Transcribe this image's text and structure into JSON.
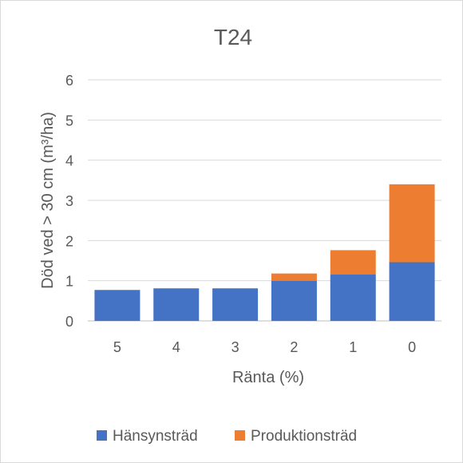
{
  "chart_data": {
    "type": "bar",
    "stacked": true,
    "title": "T24",
    "xlabel": "Ränta (%)",
    "ylabel": "Död ved > 30 cm (m³/ha)",
    "categories": [
      "5",
      "4",
      "3",
      "2",
      "1",
      "0"
    ],
    "series": [
      {
        "name": "Hänsynsträd",
        "color": "#4472c4",
        "values": [
          0.77,
          0.81,
          0.81,
          1.0,
          1.16,
          1.46
        ]
      },
      {
        "name": "Produktionsträd",
        "color": "#ed7d31",
        "values": [
          0.0,
          0.0,
          0.0,
          0.18,
          0.6,
          1.94
        ]
      }
    ],
    "ylim": [
      0,
      6
    ],
    "yticks": [
      "0",
      "1",
      "2",
      "3",
      "4",
      "5",
      "6"
    ],
    "grid": true,
    "legend": "bottom"
  }
}
